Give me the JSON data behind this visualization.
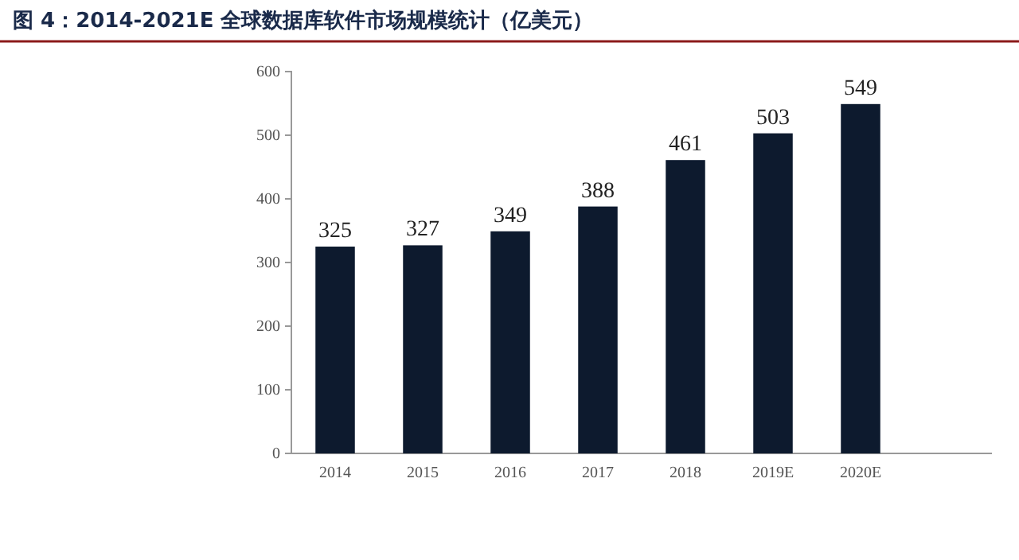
{
  "chart_data": {
    "type": "bar",
    "title": "图 4：2014-2021E 全球数据库软件市场规模统计（亿美元）",
    "categories": [
      "2014",
      "2015",
      "2016",
      "2017",
      "2018",
      "2019E",
      "2020E",
      null
    ],
    "values": [
      325,
      327,
      349,
      388,
      461,
      503,
      549,
      null
    ],
    "color": "#0d1a2e",
    "ylim": [
      0,
      600
    ],
    "yticks": [
      0,
      100,
      200,
      300,
      400,
      500,
      600
    ],
    "grid": false,
    "data_labels": true
  }
}
